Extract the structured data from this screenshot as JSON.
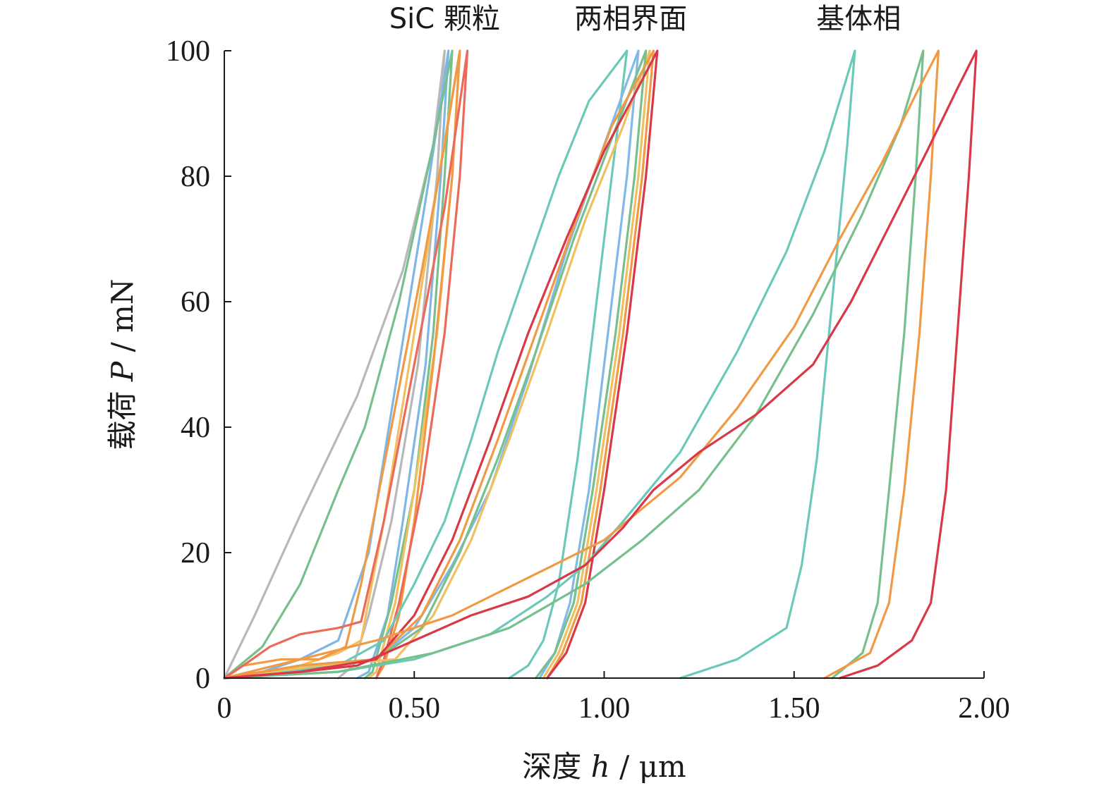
{
  "chart_data": {
    "type": "line",
    "title": "",
    "xlabel": "深度 h / μm",
    "xlabel_parts": {
      "text": "深度 ",
      "var": "h",
      "unit": " / μm"
    },
    "ylabel": "载荷 P / mN",
    "ylabel_parts": {
      "text": "载荷 ",
      "var": "P",
      "unit": " / mN"
    },
    "xlim": [
      0,
      2.0
    ],
    "ylim": [
      0,
      100
    ],
    "xticks": [
      0,
      0.5,
      1.0,
      1.5,
      2.0
    ],
    "xtick_labels": [
      "0",
      "0.50",
      "1.00",
      "1.50",
      "2.00"
    ],
    "yticks": [
      0,
      20,
      40,
      60,
      80,
      100
    ],
    "ytick_labels": [
      "0",
      "20",
      "40",
      "60",
      "80",
      "100"
    ],
    "grid": false,
    "legend": "none",
    "group_labels": [
      {
        "text": "SiC 颗粒",
        "x": 0.58
      },
      {
        "text": "两相界面",
        "x": 1.07
      },
      {
        "text": "基体相",
        "x": 1.67
      }
    ],
    "series": [
      {
        "color": "#b8b8b8",
        "points": [
          [
            0,
            0
          ],
          [
            0.08,
            10
          ],
          [
            0.2,
            26
          ],
          [
            0.35,
            45
          ],
          [
            0.47,
            65
          ],
          [
            0.55,
            85
          ],
          [
            0.58,
            100
          ],
          [
            0.56,
            80
          ],
          [
            0.51,
            50
          ],
          [
            0.44,
            25
          ],
          [
            0.38,
            10
          ],
          [
            0.34,
            2
          ],
          [
            0.3,
            0
          ]
        ]
      },
      {
        "color": "#7fb6e6",
        "points": [
          [
            0,
            0
          ],
          [
            0.1,
            1
          ],
          [
            0.2,
            3
          ],
          [
            0.3,
            6
          ],
          [
            0.38,
            20
          ],
          [
            0.46,
            50
          ],
          [
            0.54,
            80
          ],
          [
            0.59,
            100
          ],
          [
            0.57,
            80
          ],
          [
            0.53,
            50
          ],
          [
            0.47,
            25
          ],
          [
            0.43,
            10
          ],
          [
            0.38,
            1
          ],
          [
            0.35,
            0
          ]
        ]
      },
      {
        "color": "#77c08e",
        "points": [
          [
            0,
            0
          ],
          [
            0.1,
            5
          ],
          [
            0.2,
            15
          ],
          [
            0.3,
            30
          ],
          [
            0.37,
            40
          ],
          [
            0.46,
            60
          ],
          [
            0.55,
            85
          ],
          [
            0.6,
            100
          ],
          [
            0.58,
            80
          ],
          [
            0.55,
            55
          ],
          [
            0.5,
            30
          ],
          [
            0.44,
            12
          ],
          [
            0.39,
            1
          ],
          [
            0.37,
            0
          ]
        ]
      },
      {
        "color": "#f0c060",
        "points": [
          [
            0,
            0
          ],
          [
            0.1,
            1
          ],
          [
            0.2,
            2
          ],
          [
            0.3,
            4
          ],
          [
            0.36,
            6
          ],
          [
            0.42,
            25
          ],
          [
            0.5,
            55
          ],
          [
            0.57,
            82
          ],
          [
            0.62,
            100
          ],
          [
            0.6,
            80
          ],
          [
            0.56,
            55
          ],
          [
            0.5,
            30
          ],
          [
            0.45,
            12
          ],
          [
            0.4,
            1
          ],
          [
            0.38,
            0
          ]
        ]
      },
      {
        "color": "#f09a45",
        "points": [
          [
            0,
            0
          ],
          [
            0.05,
            2
          ],
          [
            0.15,
            3
          ],
          [
            0.25,
            3
          ],
          [
            0.32,
            5
          ],
          [
            0.36,
            15
          ],
          [
            0.44,
            40
          ],
          [
            0.52,
            65
          ],
          [
            0.58,
            85
          ],
          [
            0.62,
            100
          ],
          [
            0.6,
            80
          ],
          [
            0.55,
            50
          ],
          [
            0.5,
            25
          ],
          [
            0.46,
            10
          ],
          [
            0.42,
            2
          ],
          [
            0.4,
            0
          ]
        ]
      },
      {
        "color": "#ec6a5a",
        "points": [
          [
            0,
            0
          ],
          [
            0.05,
            2
          ],
          [
            0.12,
            5
          ],
          [
            0.2,
            7
          ],
          [
            0.3,
            8
          ],
          [
            0.36,
            9
          ],
          [
            0.42,
            25
          ],
          [
            0.5,
            50
          ],
          [
            0.58,
            75
          ],
          [
            0.64,
            100
          ],
          [
            0.62,
            80
          ],
          [
            0.58,
            55
          ],
          [
            0.52,
            30
          ],
          [
            0.46,
            12
          ],
          [
            0.42,
            3
          ],
          [
            0.4,
            0
          ]
        ]
      },
      {
        "color": "#6cc9b9",
        "points": [
          [
            0,
            0
          ],
          [
            0.15,
            1
          ],
          [
            0.3,
            2
          ],
          [
            0.42,
            6
          ],
          [
            0.5,
            15
          ],
          [
            0.58,
            25
          ],
          [
            0.65,
            38
          ],
          [
            0.72,
            52
          ],
          [
            0.8,
            66
          ],
          [
            0.88,
            80
          ],
          [
            0.96,
            92
          ],
          [
            1.06,
            100
          ],
          [
            1.03,
            85
          ],
          [
            0.98,
            60
          ],
          [
            0.93,
            35
          ],
          [
            0.88,
            15
          ],
          [
            0.84,
            6
          ],
          [
            0.8,
            2
          ],
          [
            0.75,
            0
          ]
        ]
      },
      {
        "color": "#82b9e8",
        "points": [
          [
            0,
            0
          ],
          [
            0.2,
            2
          ],
          [
            0.4,
            3
          ],
          [
            0.5,
            8
          ],
          [
            0.6,
            18
          ],
          [
            0.7,
            30
          ],
          [
            0.8,
            48
          ],
          [
            0.9,
            68
          ],
          [
            1.0,
            85
          ],
          [
            1.09,
            100
          ],
          [
            1.06,
            80
          ],
          [
            1.01,
            55
          ],
          [
            0.96,
            30
          ],
          [
            0.91,
            12
          ],
          [
            0.87,
            4
          ],
          [
            0.83,
            0
          ]
        ]
      },
      {
        "color": "#f0c060",
        "points": [
          [
            0,
            0
          ],
          [
            0.25,
            2
          ],
          [
            0.45,
            3
          ],
          [
            0.55,
            10
          ],
          [
            0.65,
            22
          ],
          [
            0.75,
            38
          ],
          [
            0.85,
            55
          ],
          [
            0.95,
            73
          ],
          [
            1.05,
            88
          ],
          [
            1.12,
            100
          ],
          [
            1.09,
            80
          ],
          [
            1.04,
            55
          ],
          [
            0.98,
            30
          ],
          [
            0.93,
            12
          ],
          [
            0.88,
            4
          ],
          [
            0.84,
            0
          ]
        ]
      },
      {
        "color": "#77c08e",
        "points": [
          [
            0,
            0
          ],
          [
            0.2,
            2
          ],
          [
            0.4,
            3
          ],
          [
            0.52,
            8
          ],
          [
            0.62,
            20
          ],
          [
            0.72,
            35
          ],
          [
            0.82,
            52
          ],
          [
            0.92,
            70
          ],
          [
            1.02,
            86
          ],
          [
            1.11,
            100
          ],
          [
            1.08,
            80
          ],
          [
            1.03,
            55
          ],
          [
            0.97,
            30
          ],
          [
            0.92,
            12
          ],
          [
            0.87,
            4
          ],
          [
            0.82,
            0
          ]
        ]
      },
      {
        "color": "#f09a45",
        "points": [
          [
            0,
            0
          ],
          [
            0.2,
            2
          ],
          [
            0.4,
            3
          ],
          [
            0.52,
            10
          ],
          [
            0.62,
            22
          ],
          [
            0.72,
            38
          ],
          [
            0.82,
            55
          ],
          [
            0.92,
            72
          ],
          [
            1.02,
            88
          ],
          [
            1.13,
            100
          ],
          [
            1.1,
            80
          ],
          [
            1.05,
            55
          ],
          [
            0.99,
            30
          ],
          [
            0.94,
            12
          ],
          [
            0.89,
            4
          ],
          [
            0.85,
            0
          ]
        ]
      },
      {
        "color": "#d83848",
        "points": [
          [
            0,
            0
          ],
          [
            0.2,
            1
          ],
          [
            0.4,
            3
          ],
          [
            0.5,
            10
          ],
          [
            0.6,
            22
          ],
          [
            0.7,
            38
          ],
          [
            0.8,
            55
          ],
          [
            0.9,
            70
          ],
          [
            1.0,
            84
          ],
          [
            1.08,
            93
          ],
          [
            1.14,
            100
          ],
          [
            1.11,
            80
          ],
          [
            1.06,
            55
          ],
          [
            1.0,
            30
          ],
          [
            0.95,
            12
          ],
          [
            0.9,
            4
          ],
          [
            0.85,
            0
          ]
        ]
      },
      {
        "color": "#6cc9b9",
        "points": [
          [
            0,
            0
          ],
          [
            0.3,
            1
          ],
          [
            0.5,
            3
          ],
          [
            0.7,
            7
          ],
          [
            0.85,
            13
          ],
          [
            0.95,
            18
          ],
          [
            1.05,
            25
          ],
          [
            1.2,
            36
          ],
          [
            1.35,
            52
          ],
          [
            1.48,
            68
          ],
          [
            1.58,
            84
          ],
          [
            1.66,
            100
          ],
          [
            1.64,
            85
          ],
          [
            1.6,
            60
          ],
          [
            1.56,
            35
          ],
          [
            1.52,
            18
          ],
          [
            1.48,
            8
          ],
          [
            1.35,
            3
          ],
          [
            1.2,
            0
          ]
        ]
      },
      {
        "color": "#77c08e",
        "points": [
          [
            0,
            0
          ],
          [
            0.3,
            1
          ],
          [
            0.55,
            4
          ],
          [
            0.75,
            8
          ],
          [
            0.95,
            15
          ],
          [
            1.1,
            22
          ],
          [
            1.25,
            30
          ],
          [
            1.4,
            42
          ],
          [
            1.55,
            58
          ],
          [
            1.68,
            74
          ],
          [
            1.78,
            88
          ],
          [
            1.84,
            100
          ],
          [
            1.82,
            80
          ],
          [
            1.79,
            55
          ],
          [
            1.75,
            30
          ],
          [
            1.72,
            12
          ],
          [
            1.68,
            4
          ],
          [
            1.6,
            0
          ]
        ]
      },
      {
        "color": "#f09a45",
        "points": [
          [
            0,
            0
          ],
          [
            0.2,
            3
          ],
          [
            0.4,
            6
          ],
          [
            0.6,
            10
          ],
          [
            0.8,
            16
          ],
          [
            1.0,
            22
          ],
          [
            1.2,
            32
          ],
          [
            1.35,
            43
          ],
          [
            1.5,
            56
          ],
          [
            1.62,
            70
          ],
          [
            1.73,
            82
          ],
          [
            1.82,
            93
          ],
          [
            1.88,
            100
          ],
          [
            1.86,
            80
          ],
          [
            1.83,
            55
          ],
          [
            1.79,
            30
          ],
          [
            1.75,
            12
          ],
          [
            1.7,
            4
          ],
          [
            1.58,
            0
          ]
        ]
      },
      {
        "color": "#d83848",
        "points": [
          [
            0,
            0
          ],
          [
            0.2,
            1
          ],
          [
            0.35,
            2
          ],
          [
            0.5,
            6
          ],
          [
            0.65,
            10
          ],
          [
            0.8,
            13
          ],
          [
            0.95,
            18
          ],
          [
            1.05,
            24
          ],
          [
            1.13,
            30
          ],
          [
            1.25,
            36
          ],
          [
            1.4,
            42
          ],
          [
            1.55,
            50
          ],
          [
            1.65,
            60
          ],
          [
            1.75,
            72
          ],
          [
            1.85,
            84
          ],
          [
            1.93,
            94
          ],
          [
            1.98,
            100
          ],
          [
            1.96,
            80
          ],
          [
            1.93,
            55
          ],
          [
            1.9,
            30
          ],
          [
            1.86,
            12
          ],
          [
            1.81,
            6
          ],
          [
            1.72,
            2
          ],
          [
            1.62,
            0
          ]
        ]
      }
    ]
  }
}
